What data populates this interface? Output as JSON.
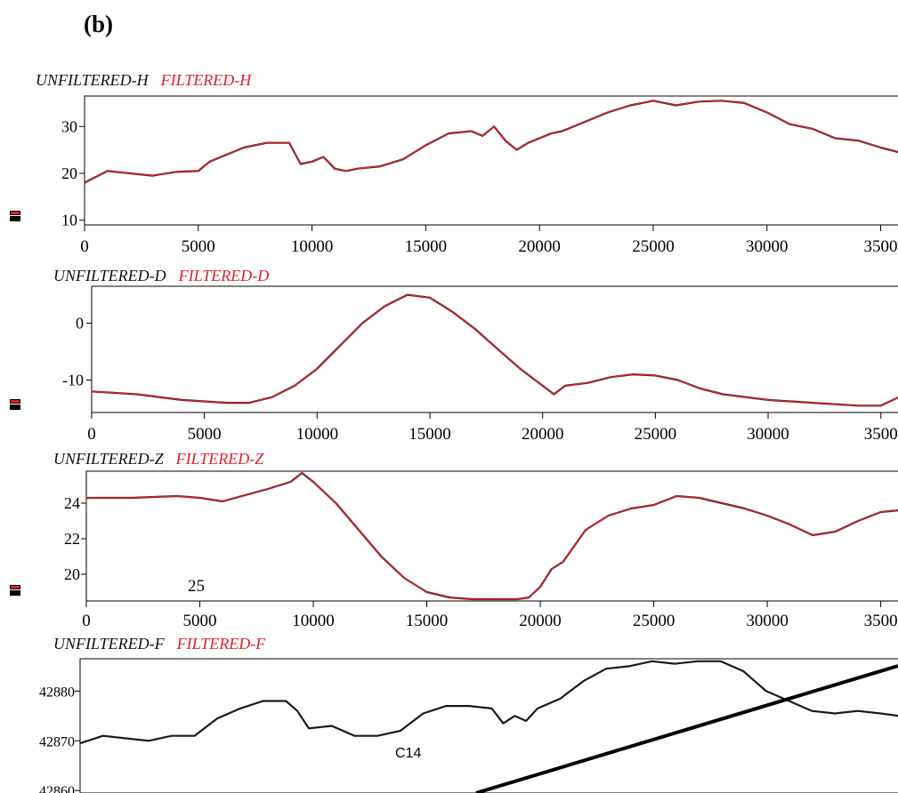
{
  "panel_label": "(b)",
  "annotations": {
    "z_panel": "25",
    "f_panel": "C14"
  },
  "colors": {
    "unfiltered": "#1a1a1a",
    "filtered": "#e0202a",
    "overlay_line": "#000000"
  },
  "chart_data": [
    {
      "type": "line",
      "legend": [
        "UNFILTERED-H",
        "FILTERED-H"
      ],
      "ylim": [
        9,
        36.5
      ],
      "xlim": [
        0,
        35800
      ],
      "yticks": [
        "10",
        "20",
        "30"
      ],
      "xticks": [
        "0",
        "5000",
        "10000",
        "15000",
        "20000",
        "25000",
        "30000",
        "3500"
      ],
      "series": [
        {
          "name": "UNFILTERED-H",
          "x": [
            0,
            1000,
            2000,
            3000,
            4000,
            5000,
            5500,
            6000,
            7000,
            8000,
            9000,
            9500,
            10000,
            10500,
            11000,
            11500,
            12000,
            13000,
            14000,
            15000,
            16000,
            17000,
            17500,
            18000,
            18500,
            19000,
            19500,
            20000,
            20500,
            21000,
            22000,
            23000,
            24000,
            25000,
            26000,
            27000,
            28000,
            29000,
            30000,
            31000,
            32000,
            33000,
            34000,
            35000,
            35800
          ],
          "y": [
            18,
            20.5,
            20,
            19.5,
            20.3,
            20.5,
            22.5,
            23.5,
            25.5,
            26.5,
            26.5,
            22,
            22.5,
            23.5,
            21,
            20.5,
            21,
            21.5,
            23,
            26,
            28.5,
            29,
            28,
            30,
            27,
            25,
            26.5,
            27.5,
            28.5,
            29,
            31,
            33,
            34.5,
            35.5,
            34.5,
            35.3,
            35.5,
            35,
            33,
            30.5,
            29.5,
            27.5,
            27,
            25.5,
            24.5
          ]
        },
        {
          "name": "FILTERED-H",
          "x": [
            0,
            1000,
            2000,
            3000,
            4000,
            5000,
            5500,
            6000,
            7000,
            8000,
            9000,
            9500,
            10000,
            10500,
            11000,
            11500,
            12000,
            13000,
            14000,
            15000,
            16000,
            17000,
            17500,
            18000,
            18500,
            19000,
            19500,
            20000,
            20500,
            21000,
            22000,
            23000,
            24000,
            25000,
            26000,
            27000,
            28000,
            29000,
            30000,
            31000,
            32000,
            33000,
            34000,
            35000,
            35800
          ],
          "y": [
            18,
            20.5,
            20,
            19.5,
            20.3,
            20.5,
            22.5,
            23.5,
            25.5,
            26.5,
            26.5,
            22,
            22.5,
            23.5,
            21,
            20.5,
            21,
            21.5,
            23,
            26,
            28.5,
            29,
            28,
            30,
            27,
            25,
            26.5,
            27.5,
            28.5,
            29,
            31,
            33,
            34.5,
            35.5,
            34.5,
            35.3,
            35.5,
            35,
            33,
            30.5,
            29.5,
            27.5,
            27,
            25.5,
            24.5
          ]
        }
      ]
    },
    {
      "type": "line",
      "legend": [
        "UNFILTERED-D",
        "FILTERED-D"
      ],
      "ylim": [
        -15.7,
        6.5
      ],
      "xlim": [
        0,
        35800
      ],
      "yticks": [
        "0",
        "-10"
      ],
      "xticks": [
        "0",
        "5000",
        "10000",
        "15000",
        "20000",
        "25000",
        "30000",
        "3500"
      ],
      "series": [
        {
          "name": "UNFILTERED-D",
          "x": [
            0,
            2000,
            4000,
            6000,
            7000,
            8000,
            9000,
            10000,
            11000,
            12000,
            13000,
            14000,
            15000,
            16000,
            17000,
            18000,
            19000,
            20000,
            20500,
            21000,
            22000,
            23000,
            24000,
            25000,
            26000,
            27000,
            28000,
            30000,
            32000,
            34000,
            35000,
            35800
          ],
          "y": [
            -12,
            -12.5,
            -13.5,
            -14,
            -14,
            -13,
            -11,
            -8,
            -4,
            0,
            3,
            5,
            4.5,
            2,
            -1,
            -4.5,
            -8,
            -11,
            -12.5,
            -11,
            -10.5,
            -9.5,
            -9,
            -9.2,
            -10,
            -11.5,
            -12.5,
            -13.5,
            -14,
            -14.5,
            -14.5,
            -13
          ]
        },
        {
          "name": "FILTERED-D",
          "x": [
            0,
            2000,
            4000,
            6000,
            7000,
            8000,
            9000,
            10000,
            11000,
            12000,
            13000,
            14000,
            15000,
            16000,
            17000,
            18000,
            19000,
            20000,
            20500,
            21000,
            22000,
            23000,
            24000,
            25000,
            26000,
            27000,
            28000,
            30000,
            32000,
            34000,
            35000,
            35800
          ],
          "y": [
            -12,
            -12.5,
            -13.5,
            -14,
            -14,
            -13,
            -11,
            -8,
            -4,
            0,
            3,
            5,
            4.5,
            2,
            -1,
            -4.5,
            -8,
            -11,
            -12.5,
            -11,
            -10.5,
            -9.5,
            -9,
            -9.2,
            -10,
            -11.5,
            -12.5,
            -13.5,
            -14,
            -14.5,
            -14.5,
            -13
          ]
        }
      ]
    },
    {
      "type": "line",
      "legend": [
        "UNFILTERED-Z",
        "FILTERED-Z"
      ],
      "ylim": [
        18.5,
        25.8
      ],
      "xlim": [
        0,
        35800
      ],
      "yticks": [
        "24",
        "22",
        "20"
      ],
      "xticks": [
        "0",
        "5000",
        "10000",
        "15000",
        "20000",
        "25000",
        "30000",
        "3500"
      ],
      "series": [
        {
          "name": "UNFILTERED-Z",
          "x": [
            0,
            2000,
            4000,
            5000,
            6000,
            8000,
            9000,
            9500,
            10000,
            11000,
            12000,
            13000,
            14000,
            15000,
            16000,
            17000,
            18000,
            19000,
            19500,
            20000,
            20500,
            21000,
            22000,
            23000,
            24000,
            25000,
            26000,
            27000,
            28000,
            29000,
            30000,
            31000,
            32000,
            33000,
            34000,
            35000,
            35800
          ],
          "y": [
            24.3,
            24.3,
            24.4,
            24.3,
            24.1,
            24.8,
            25.2,
            25.7,
            25.2,
            24,
            22.5,
            21,
            19.8,
            19,
            18.7,
            18.6,
            18.6,
            18.6,
            18.7,
            19.3,
            20.3,
            20.7,
            22.5,
            23.3,
            23.7,
            23.9,
            24.4,
            24.3,
            24,
            23.7,
            23.3,
            22.8,
            22.2,
            22.4,
            23,
            23.5,
            23.6
          ]
        },
        {
          "name": "FILTERED-Z",
          "x": [
            0,
            2000,
            4000,
            5000,
            6000,
            8000,
            9000,
            9500,
            10000,
            11000,
            12000,
            13000,
            14000,
            15000,
            16000,
            17000,
            18000,
            19000,
            19500,
            20000,
            20500,
            21000,
            22000,
            23000,
            24000,
            25000,
            26000,
            27000,
            28000,
            29000,
            30000,
            31000,
            32000,
            33000,
            34000,
            35000,
            35800
          ],
          "y": [
            24.3,
            24.3,
            24.4,
            24.3,
            24.1,
            24.8,
            25.2,
            25.7,
            25.2,
            24,
            22.5,
            21,
            19.8,
            19,
            18.7,
            18.6,
            18.6,
            18.6,
            18.7,
            19.3,
            20.3,
            20.7,
            22.5,
            23.3,
            23.7,
            23.9,
            24.4,
            24.3,
            24,
            23.7,
            23.3,
            22.8,
            22.2,
            22.4,
            23,
            23.5,
            23.6
          ]
        }
      ]
    },
    {
      "type": "line",
      "legend": [
        "UNFILTERED-F",
        "FILTERED-F"
      ],
      "ylim": [
        42859.5,
        42886.5
      ],
      "xlim": [
        0,
        35800
      ],
      "yticks": [
        "42880",
        "42870",
        "42860"
      ],
      "xticks": [],
      "series": [
        {
          "name": "UNFILTERED-F",
          "x": [
            0,
            1000,
            2000,
            3000,
            4000,
            5000,
            6000,
            7000,
            8000,
            9000,
            9500,
            10000,
            11000,
            12000,
            13000,
            14000,
            15000,
            16000,
            17000,
            18000,
            18500,
            19000,
            19500,
            20000,
            21000,
            22000,
            23000,
            24000,
            25000,
            26000,
            27000,
            28000,
            29000,
            30000,
            31000,
            32000,
            33000,
            34000,
            35000,
            35800
          ],
          "y": [
            42869.5,
            42871,
            42870.5,
            42870,
            42871,
            42871,
            42874.5,
            42876.5,
            42878,
            42878,
            42876,
            42872.5,
            42873,
            42871,
            42871,
            42872,
            42875.5,
            42877,
            42877,
            42876.5,
            42873.5,
            42875,
            42874,
            42876.5,
            42878.5,
            42882,
            42884.5,
            42885,
            42886,
            42885.5,
            42886,
            42886,
            42884,
            42880,
            42878,
            42876,
            42875.5,
            42876,
            42875.5,
            42875
          ]
        }
      ]
    }
  ]
}
